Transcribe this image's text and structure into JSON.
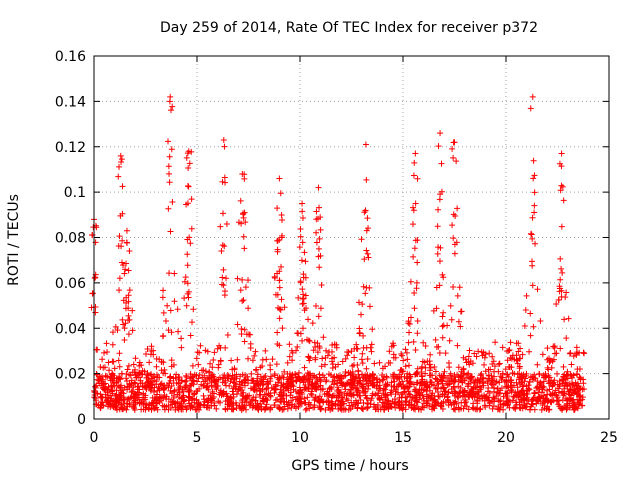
{
  "chart_data": {
    "type": "scatter",
    "title": "Day 259 of 2014, Rate Of TEC Index for receiver p372",
    "xlabel": "GPS time / hours",
    "ylabel": "ROTI / TECUs",
    "xlim": [
      0,
      25
    ],
    "ylim": [
      0,
      0.16
    ],
    "x_ticks": [
      0,
      5,
      10,
      15,
      20,
      25
    ],
    "x_tick_labels": [
      "0",
      "5",
      "10",
      "15",
      "20",
      "25"
    ],
    "y_ticks": [
      0,
      0.02,
      0.04,
      0.06,
      0.08,
      0.1,
      0.12,
      0.14,
      0.16
    ],
    "y_tick_labels": [
      "0",
      "0.02",
      "0.04",
      "0.06",
      "0.08",
      "0.1",
      "0.12",
      "0.14",
      "0.16"
    ],
    "grid": true,
    "marker": "+",
    "color": "#ff0000",
    "data_range_x": [
      0,
      23.8
    ],
    "peaks": [
      {
        "x": 0.0,
        "y": 0.088
      },
      {
        "x": 1.3,
        "y": 0.116
      },
      {
        "x": 1.6,
        "y": 0.083
      },
      {
        "x": 3.7,
        "y": 0.142
      },
      {
        "x": 4.6,
        "y": 0.118
      },
      {
        "x": 6.3,
        "y": 0.123
      },
      {
        "x": 7.2,
        "y": 0.108
      },
      {
        "x": 9.0,
        "y": 0.106
      },
      {
        "x": 10.1,
        "y": 0.095
      },
      {
        "x": 10.9,
        "y": 0.102
      },
      {
        "x": 13.2,
        "y": 0.121
      },
      {
        "x": 15.6,
        "y": 0.117
      },
      {
        "x": 16.8,
        "y": 0.126
      },
      {
        "x": 17.5,
        "y": 0.122
      },
      {
        "x": 21.3,
        "y": 0.142
      },
      {
        "x": 22.7,
        "y": 0.117
      }
    ]
  }
}
